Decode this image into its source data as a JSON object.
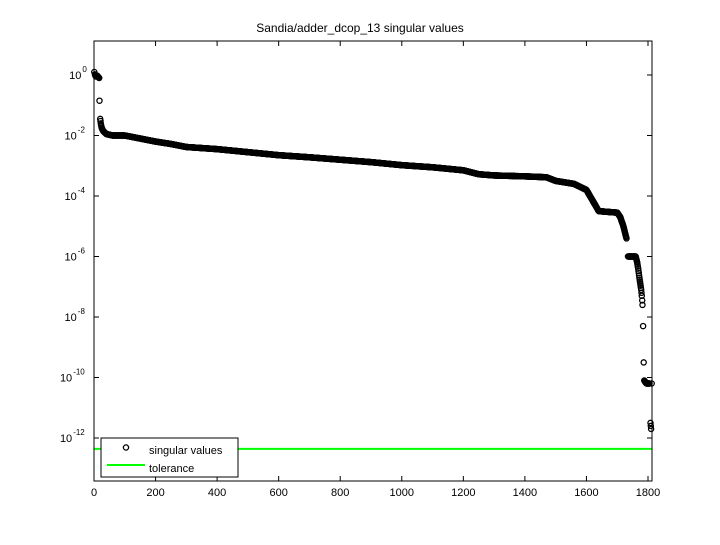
{
  "chart_data": {
    "type": "scatter",
    "title": "Sandia/adder_dcop_13 singular values",
    "xlabel": "",
    "ylabel": "",
    "xscale": "linear",
    "yscale": "log",
    "xlim": [
      0,
      1813
    ],
    "ylim_log10": [
      -13.7,
      1.1
    ],
    "grid": false,
    "legend_position": "lower left",
    "xticks": [
      0,
      200,
      400,
      600,
      800,
      1000,
      1200,
      1400,
      1600,
      1800
    ],
    "xtick_labels": [
      "0",
      "200",
      "400",
      "600",
      "800",
      "1000",
      "1200",
      "1400",
      "1600",
      "1800"
    ],
    "yticks_log10": [
      0,
      -2,
      -4,
      -6,
      -8,
      -10,
      -12
    ],
    "ytick_labels": [
      {
        "base": "10",
        "exp": "0"
      },
      {
        "base": "10",
        "exp": "-2"
      },
      {
        "base": "10",
        "exp": "-4"
      },
      {
        "base": "10",
        "exp": "-6"
      },
      {
        "base": "10",
        "exp": "-8"
      },
      {
        "base": "10",
        "exp": "-10"
      },
      {
        "base": "10",
        "exp": "-12"
      }
    ],
    "series": [
      {
        "name": "singular values",
        "marker": "circle-open",
        "color": "#000000",
        "points_index_log10": [
          [
            1,
            0.1
          ],
          [
            3,
            0.02
          ],
          [
            6,
            -0.05
          ],
          [
            10,
            -0.02
          ],
          [
            15,
            -0.08
          ],
          [
            17,
            -0.1
          ],
          [
            18,
            -0.85
          ],
          [
            20,
            -1.45
          ],
          [
            22,
            -1.6
          ],
          [
            25,
            -1.75
          ],
          [
            30,
            -1.85
          ],
          [
            40,
            -1.95
          ],
          [
            60,
            -2.0
          ],
          [
            100,
            -2.0
          ],
          [
            150,
            -2.1
          ],
          [
            200,
            -2.2
          ],
          [
            250,
            -2.28
          ],
          [
            300,
            -2.38
          ],
          [
            400,
            -2.45
          ],
          [
            500,
            -2.55
          ],
          [
            600,
            -2.65
          ],
          [
            700,
            -2.72
          ],
          [
            800,
            -2.8
          ],
          [
            900,
            -2.88
          ],
          [
            1000,
            -2.98
          ],
          [
            1100,
            -3.05
          ],
          [
            1200,
            -3.15
          ],
          [
            1250,
            -3.28
          ],
          [
            1300,
            -3.32
          ],
          [
            1400,
            -3.35
          ],
          [
            1470,
            -3.38
          ],
          [
            1500,
            -3.5
          ],
          [
            1560,
            -3.6
          ],
          [
            1600,
            -3.8
          ],
          [
            1640,
            -4.5
          ],
          [
            1700,
            -4.55
          ],
          [
            1710,
            -4.7
          ],
          [
            1720,
            -5.0
          ],
          [
            1730,
            -5.4
          ],
          [
            1735,
            -6.0
          ],
          [
            1760,
            -6.0
          ],
          [
            1765,
            -6.2
          ],
          [
            1768,
            -6.4
          ],
          [
            1772,
            -6.7
          ],
          [
            1775,
            -6.9
          ],
          [
            1778,
            -7.1
          ],
          [
            1780,
            -7.3
          ],
          [
            1782,
            -7.6
          ],
          [
            1784,
            -8.3
          ],
          [
            1786,
            -9.5
          ],
          [
            1788,
            -10.1
          ],
          [
            1795,
            -10.2
          ],
          [
            1805,
            -10.2
          ],
          [
            1812,
            -10.2
          ],
          [
            1808,
            -11.5
          ],
          [
            1810,
            -11.7
          ]
        ]
      },
      {
        "name": "tolerance",
        "marker": "line",
        "color": "#00ff00",
        "value_log10": -12.36
      }
    ]
  },
  "legend": {
    "items": [
      {
        "label": "singular values",
        "symbol": "circle-open",
        "color": "#000000"
      },
      {
        "label": "tolerance",
        "symbol": "line",
        "color": "#00ff00"
      }
    ]
  }
}
